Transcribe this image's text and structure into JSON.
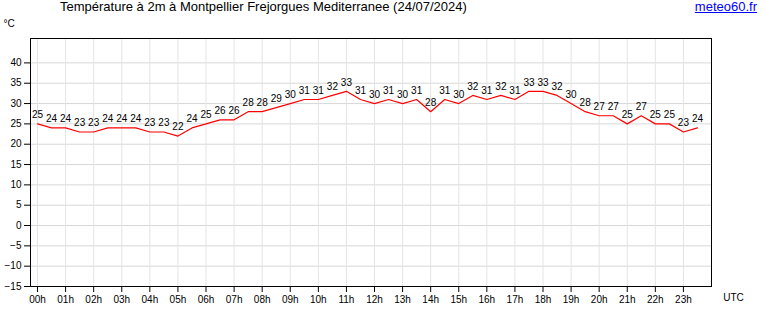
{
  "chart_data": {
    "type": "line",
    "title": "Température à 2m à Montpellier Frejorgues Mediterranee (24/07/2024)",
    "source": "meteo60.fr",
    "xlabel": "UTC",
    "ylabel": "°C",
    "x": [
      0,
      0.5,
      1,
      1.5,
      2,
      2.5,
      3,
      3.5,
      4,
      4.5,
      5,
      5.5,
      6,
      6.5,
      7,
      7.5,
      8,
      8.5,
      9,
      9.5,
      10,
      10.5,
      11,
      11.5,
      12,
      12.5,
      13,
      13.5,
      14,
      14.5,
      15,
      15.5,
      16,
      16.5,
      17,
      17.5,
      18,
      18.5,
      19,
      19.5,
      20,
      20.5,
      21,
      21.5,
      22,
      22.5,
      23,
      23.5
    ],
    "values": [
      25,
      24,
      24,
      23,
      23,
      24,
      24,
      24,
      23,
      23,
      22,
      24,
      25,
      26,
      26,
      28,
      28,
      29,
      30,
      31,
      31,
      32,
      33,
      31,
      30,
      31,
      30,
      31,
      28,
      31,
      30,
      32,
      31,
      32,
      31,
      33,
      33,
      32,
      30,
      28,
      27,
      27,
      25,
      27,
      25,
      25,
      23,
      24
    ],
    "color": "#ff0000",
    "data_labels": true,
    "grid": true,
    "xlim": [
      -0.25,
      24
    ],
    "xticks": [
      {
        "value": 0,
        "label": "00h"
      },
      {
        "value": 1,
        "label": "01h"
      },
      {
        "value": 2,
        "label": "02h"
      },
      {
        "value": 3,
        "label": "03h"
      },
      {
        "value": 4,
        "label": "04h"
      },
      {
        "value": 5,
        "label": "05h"
      },
      {
        "value": 6,
        "label": "06h"
      },
      {
        "value": 7,
        "label": "07h"
      },
      {
        "value": 8,
        "label": "08h"
      },
      {
        "value": 9,
        "label": "09h"
      },
      {
        "value": 10,
        "label": "10h"
      },
      {
        "value": 11,
        "label": "11h"
      },
      {
        "value": 12,
        "label": "12h"
      },
      {
        "value": 13,
        "label": "13h"
      },
      {
        "value": 14,
        "label": "14h"
      },
      {
        "value": 15,
        "label": "15h"
      },
      {
        "value": 16,
        "label": "16h"
      },
      {
        "value": 17,
        "label": "17h"
      },
      {
        "value": 18,
        "label": "18h"
      },
      {
        "value": 19,
        "label": "19h"
      },
      {
        "value": 20,
        "label": "20h"
      },
      {
        "value": 21,
        "label": "21h"
      },
      {
        "value": 22,
        "label": "22h"
      },
      {
        "value": 23,
        "label": "23h"
      }
    ],
    "ylim": [
      -15,
      46
    ],
    "yticks": [
      -15,
      -10,
      -5,
      0,
      5,
      10,
      15,
      20,
      25,
      30,
      35,
      40
    ]
  }
}
